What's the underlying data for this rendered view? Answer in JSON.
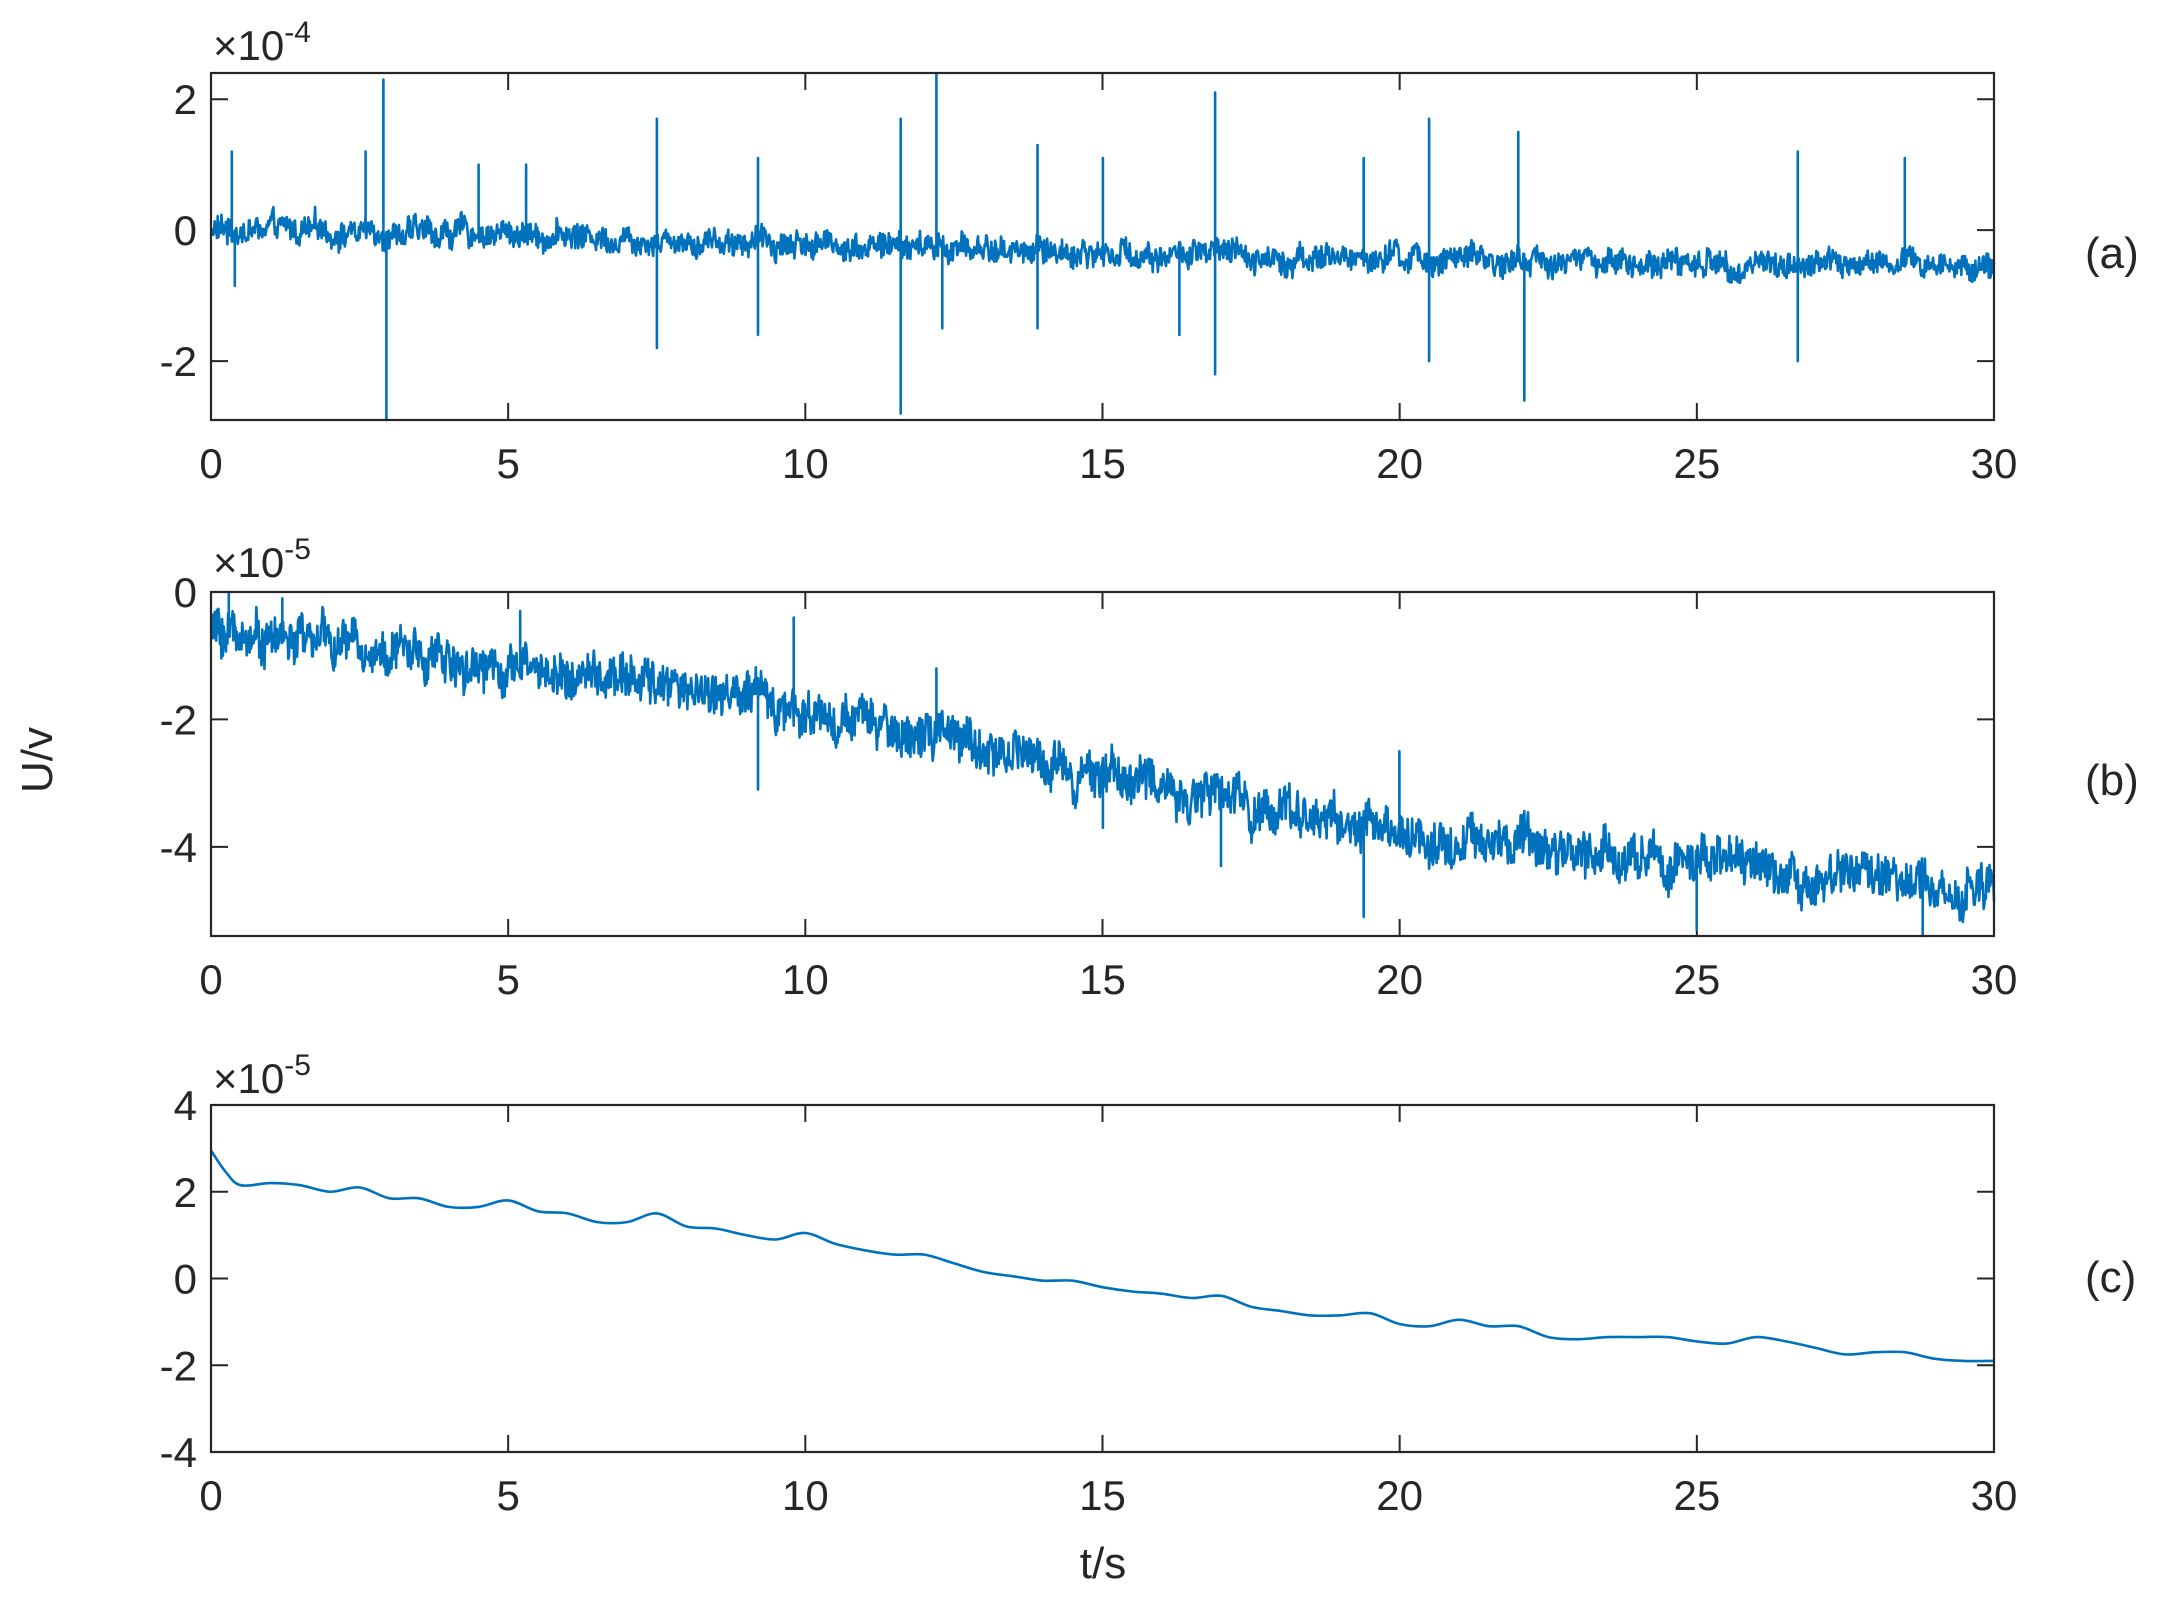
{
  "chart_data": [
    {
      "type": "line",
      "panel_label": "(a)",
      "exponent": "×10",
      "exponent_power": "-4",
      "x_ticks": [
        "0",
        "5",
        "10",
        "15",
        "20",
        "25",
        "30"
      ],
      "y_ticks": [
        "-2",
        "0",
        "2"
      ],
      "xlim": [
        0,
        30
      ],
      "ylim": [
        -2.9,
        2.4
      ],
      "series": [
        {
          "color": "#0072BD",
          "baseline": {
            "x": [
              0,
              5,
              10,
              15,
              20,
              25,
              30
            ],
            "y": [
              0.0,
              -0.05,
              -0.2,
              -0.35,
              -0.45,
              -0.5,
              -0.55
            ]
          },
          "noise_amplitude": 0.22,
          "spikes": [
            [
              0.35,
              1.2
            ],
            [
              0.4,
              -0.85
            ],
            [
              2.6,
              1.2
            ],
            [
              2.9,
              2.3
            ],
            [
              2.95,
              -2.9
            ],
            [
              4.5,
              1.0
            ],
            [
              5.3,
              1.0
            ],
            [
              7.5,
              1.7
            ],
            [
              7.5,
              -1.8
            ],
            [
              9.2,
              1.1
            ],
            [
              9.2,
              -1.6
            ],
            [
              11.6,
              1.7
            ],
            [
              11.6,
              -2.8
            ],
            [
              12.2,
              2.4
            ],
            [
              12.3,
              -1.5
            ],
            [
              13.9,
              1.3
            ],
            [
              13.9,
              -1.5
            ],
            [
              15.0,
              1.1
            ],
            [
              16.3,
              -1.6
            ],
            [
              16.9,
              2.1
            ],
            [
              16.9,
              -2.2
            ],
            [
              19.4,
              1.1
            ],
            [
              20.5,
              1.7
            ],
            [
              20.5,
              -2.0
            ],
            [
              22.0,
              1.5
            ],
            [
              22.1,
              -2.6
            ],
            [
              26.7,
              1.2
            ],
            [
              26.7,
              -2.0
            ],
            [
              28.5,
              1.1
            ]
          ]
        }
      ]
    },
    {
      "type": "line",
      "panel_label": "(b)",
      "exponent": "×10",
      "exponent_power": "-5",
      "x_ticks": [
        "0",
        "5",
        "10",
        "15",
        "20",
        "25",
        "30"
      ],
      "y_ticks": [
        "-4",
        "-2",
        "0"
      ],
      "xlim": [
        0,
        30
      ],
      "ylim": [
        -5.4,
        0.0
      ],
      "series": [
        {
          "color": "#0072BD",
          "baseline": {
            "x": [
              0,
              1,
              2,
              3,
              4,
              5,
              6,
              7,
              8,
              9,
              10,
              11,
              12,
              13,
              14,
              15,
              16,
              17,
              18,
              19,
              20,
              21,
              22,
              23,
              24,
              25,
              26,
              27,
              28,
              29,
              30
            ],
            "y": [
              -0.6,
              -0.7,
              -0.8,
              -0.9,
              -1.05,
              -1.15,
              -1.3,
              -1.4,
              -1.5,
              -1.65,
              -1.85,
              -2.1,
              -2.25,
              -2.45,
              -2.65,
              -2.8,
              -3.05,
              -3.25,
              -3.4,
              -3.6,
              -3.8,
              -3.9,
              -4.0,
              -4.1,
              -4.15,
              -4.25,
              -4.35,
              -4.45,
              -4.55,
              -4.65,
              -4.7
            ]
          },
          "noise_amplitude": 0.38,
          "spikes": [
            [
              0.3,
              0.0
            ],
            [
              1.2,
              -0.1
            ],
            [
              5.2,
              -0.3
            ],
            [
              9.2,
              -3.1
            ],
            [
              9.8,
              -0.4
            ],
            [
              12.2,
              -1.2
            ],
            [
              15.0,
              -3.7
            ],
            [
              17.0,
              -4.3
            ],
            [
              19.4,
              -5.1
            ],
            [
              20.0,
              -2.5
            ],
            [
              25.0,
              -5.3
            ],
            [
              28.8,
              -5.4
            ]
          ]
        }
      ]
    },
    {
      "type": "line",
      "panel_label": "(c)",
      "exponent": "×10",
      "exponent_power": "-5",
      "x_ticks": [
        "0",
        "5",
        "10",
        "15",
        "20",
        "25",
        "30"
      ],
      "y_ticks": [
        "-4",
        "-2",
        "0",
        "2",
        "4"
      ],
      "xlim": [
        0,
        30
      ],
      "ylim": [
        -4,
        4
      ],
      "xlabel": "t/s",
      "series": [
        {
          "color": "#0072BD",
          "x": [
            0,
            0.25,
            0.5,
            1.0,
            1.5,
            2.0,
            2.5,
            3.0,
            3.5,
            4.0,
            4.5,
            5.0,
            5.5,
            6.0,
            6.5,
            7.0,
            7.5,
            8.0,
            8.5,
            9.0,
            9.5,
            10.0,
            10.5,
            11.0,
            11.5,
            12.0,
            12.5,
            13.0,
            13.5,
            14.0,
            14.5,
            15.0,
            15.5,
            16.0,
            16.5,
            17.0,
            17.5,
            18.0,
            18.5,
            19.0,
            19.5,
            20.0,
            20.5,
            21.0,
            21.5,
            22.0,
            22.5,
            23.0,
            23.5,
            24.0,
            24.5,
            25.0,
            25.5,
            26.0,
            26.5,
            27.0,
            27.5,
            28.0,
            28.5,
            29.0,
            29.5,
            30.0
          ],
          "y": [
            2.95,
            2.45,
            2.15,
            2.2,
            2.15,
            2.0,
            2.1,
            1.85,
            1.85,
            1.65,
            1.65,
            1.8,
            1.55,
            1.5,
            1.3,
            1.3,
            1.5,
            1.2,
            1.15,
            1.0,
            0.9,
            1.05,
            0.8,
            0.65,
            0.55,
            0.55,
            0.35,
            0.15,
            0.05,
            -0.05,
            -0.05,
            -0.2,
            -0.3,
            -0.35,
            -0.45,
            -0.4,
            -0.65,
            -0.75,
            -0.85,
            -0.85,
            -0.8,
            -1.05,
            -1.1,
            -0.95,
            -1.1,
            -1.1,
            -1.35,
            -1.4,
            -1.35,
            -1.35,
            -1.35,
            -1.45,
            -1.5,
            -1.35,
            -1.45,
            -1.6,
            -1.75,
            -1.7,
            -1.7,
            -1.85,
            -1.9,
            -1.9
          ]
        }
      ]
    }
  ],
  "shared": {
    "ylabel": "U/v"
  }
}
